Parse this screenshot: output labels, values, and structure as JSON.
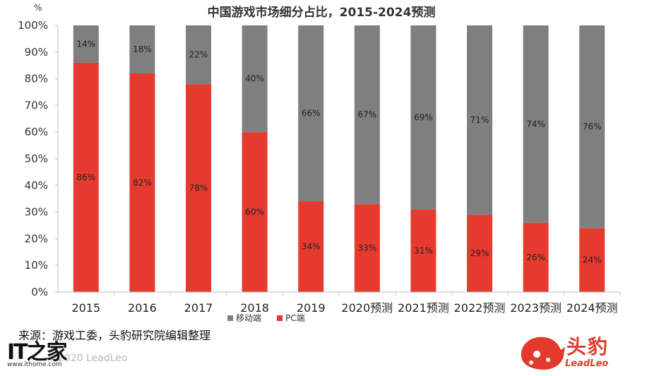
{
  "chart_data": {
    "type": "bar",
    "stacked": true,
    "title": "中国游戏市场细分占比，2015-2024预测",
    "y_unit_label": "%",
    "categories": [
      "2015",
      "2016",
      "2017",
      "2018",
      "2019",
      "2020预测",
      "2021预测",
      "2022预测",
      "2023预测",
      "2024预测"
    ],
    "series": [
      {
        "name": "PC端",
        "color": "#e63a2e",
        "values": [
          86,
          82,
          78,
          60,
          34,
          33,
          31,
          29,
          26,
          24
        ],
        "labels": [
          "86%",
          "82%",
          "78%",
          "60%",
          "34%",
          "33%",
          "31%",
          "29%",
          "26%",
          "24%"
        ]
      },
      {
        "name": "移动端",
        "color": "#7f7f7f",
        "values": [
          14,
          18,
          22,
          40,
          66,
          67,
          69,
          71,
          74,
          76
        ],
        "labels": [
          "14%",
          "18%",
          "22%",
          "40%",
          "66%",
          "67%",
          "69%",
          "71%",
          "74%",
          "76%"
        ]
      }
    ],
    "y_ticks": [
      "0%",
      "10%",
      "20%",
      "30%",
      "40%",
      "50%",
      "60%",
      "70%",
      "80%",
      "90%",
      "100%"
    ],
    "ylim": [
      0,
      100
    ],
    "legend_position": "bottom",
    "grid": false
  },
  "footer": {
    "source": "来源：游戏工委，头豹研究院编辑整理",
    "copyright": "©2020 LeadLeo"
  },
  "watermark": {
    "mark": "IT之家",
    "url": "www.ithome.com"
  },
  "brand": {
    "name_cn": "头豹",
    "name_en": "LeadLeo"
  }
}
